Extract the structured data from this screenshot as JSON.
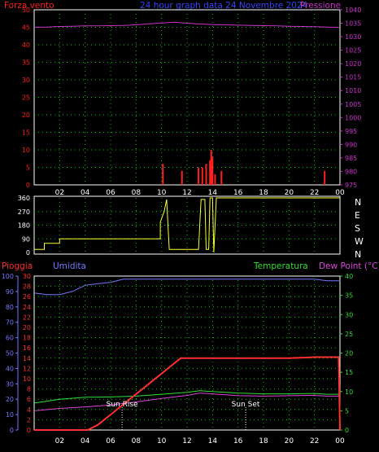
{
  "header": {
    "left_label": "Forza vento",
    "center_label": "24 hour graph data  24 Novembre 2024",
    "right_label": "Pressione"
  },
  "lower_header": {
    "pioggia": "Pioggia",
    "umidita": "Umidita",
    "temperatura": "Temperatura",
    "dewpoint": "Dew Point (°C)"
  },
  "colors": {
    "wind": "#ff2020",
    "pressure": "#cc33cc",
    "direction": "#ffff33",
    "rain": "#ff3030",
    "humidity": "#7777ff",
    "temperature": "#33dd33",
    "dewpoint": "#dd44dd",
    "grid": "#00cc00"
  },
  "x_ticks": [
    "02",
    "04",
    "06",
    "08",
    "10",
    "12",
    "14",
    "16",
    "18",
    "20",
    "22",
    "00"
  ],
  "chart_data": [
    {
      "type": "line",
      "title": "24 hour graph data  24 Novembre 2024",
      "left_axis": {
        "label": "Forza vento",
        "ticks": [
          0,
          5,
          10,
          15,
          20,
          25,
          30,
          35,
          40,
          45,
          50
        ],
        "ylim": [
          0,
          50
        ]
      },
      "right_axis": {
        "label": "Pressione",
        "ticks": [
          975,
          980,
          985,
          990,
          995,
          1000,
          1005,
          1010,
          1015,
          1020,
          1025,
          1030,
          1035,
          1040
        ],
        "ylim": [
          975,
          1040
        ]
      },
      "x": [
        0,
        1,
        2,
        3,
        4,
        5,
        6,
        7,
        8,
        9,
        10,
        11,
        12,
        13,
        14,
        15,
        16,
        17,
        18,
        19,
        20,
        21,
        22,
        23,
        24
      ],
      "series": [
        {
          "name": "Pressione",
          "axis": "right",
          "values": [
            1033.5,
            1033.6,
            1033.8,
            1033.9,
            1034.0,
            1034.0,
            1034.1,
            1034.2,
            1034.4,
            1034.8,
            1035.1,
            1035.4,
            1035.0,
            1034.7,
            1034.5,
            1034.4,
            1034.3,
            1034.2,
            1034.1,
            1034.0,
            1033.9,
            1033.8,
            1033.7,
            1033.6,
            1033.4
          ]
        },
        {
          "name": "Forza vento",
          "axis": "left",
          "type": "bar",
          "points": [
            [
              10.1,
              6
            ],
            [
              11.6,
              4
            ],
            [
              12.9,
              5
            ],
            [
              13.2,
              5
            ],
            [
              13.5,
              6
            ],
            [
              13.8,
              7
            ],
            [
              13.9,
              10
            ],
            [
              14.0,
              8
            ],
            [
              14.2,
              3
            ],
            [
              14.7,
              4
            ],
            [
              22.8,
              4
            ]
          ]
        }
      ]
    },
    {
      "type": "line",
      "title": "",
      "left_axis": {
        "ticks": [
          0,
          90,
          180,
          270,
          360
        ],
        "ylim": [
          0,
          360
        ]
      },
      "right_axis": {
        "ticks": [
          "N",
          "W",
          "S",
          "E",
          "N"
        ]
      },
      "series": [
        {
          "name": "",
          "points": [
            [
              0.0,
              20
            ],
            [
              0.8,
              20
            ],
            [
              0.8,
              60
            ],
            [
              2.0,
              60
            ],
            [
              2.0,
              90
            ],
            [
              9.9,
              90
            ],
            [
              9.9,
              200
            ],
            [
              10.2,
              270
            ],
            [
              10.4,
              350
            ],
            [
              10.6,
              20
            ],
            [
              12.9,
              20
            ],
            [
              13.1,
              350
            ],
            [
              13.4,
              350
            ],
            [
              13.5,
              20
            ],
            [
              13.7,
              20
            ],
            [
              13.8,
              360
            ],
            [
              14.0,
              360
            ],
            [
              14.1,
              0
            ],
            [
              14.3,
              360
            ],
            [
              24.0,
              360
            ]
          ]
        }
      ]
    },
    {
      "type": "line",
      "title": "",
      "left_axis_inner": {
        "label": "Pioggia",
        "ticks": [
          0,
          2,
          4,
          6,
          8,
          10,
          12,
          14,
          16,
          18,
          20,
          22,
          24,
          26,
          28,
          30
        ],
        "ylim": [
          0,
          30
        ]
      },
      "left_axis_outer": {
        "label": "Umidita",
        "ticks": [
          0,
          10,
          20,
          30,
          40,
          50,
          60,
          70,
          80,
          90,
          100
        ],
        "ylim": [
          0,
          100
        ]
      },
      "right_axis": {
        "label": "Temperatura",
        "ticks": [
          0,
          5,
          10,
          15,
          20,
          25,
          30,
          35,
          40
        ],
        "ylim": [
          0,
          40
        ]
      },
      "annotations": [
        {
          "text": "Sun Rise",
          "x": 6.9
        },
        {
          "text": "Sun Set",
          "x": 16.6
        }
      ],
      "series": [
        {
          "name": "Umidita",
          "axis": "outer",
          "points": [
            [
              0,
              89
            ],
            [
              1,
              88
            ],
            [
              2,
              88
            ],
            [
              3,
              90
            ],
            [
              4,
              94
            ],
            [
              5,
              95
            ],
            [
              6,
              96
            ],
            [
              7,
              98
            ],
            [
              8,
              98
            ],
            [
              9,
              98
            ],
            [
              10,
              98
            ],
            [
              11,
              98
            ],
            [
              12,
              98
            ],
            [
              14,
              98
            ],
            [
              16,
              98
            ],
            [
              18,
              98
            ],
            [
              20,
              98
            ],
            [
              22,
              98
            ],
            [
              23,
              97
            ],
            [
              24,
              97
            ]
          ]
        },
        {
          "name": "Pioggia",
          "axis": "inner",
          "points": [
            [
              0,
              0
            ],
            [
              4.2,
              0
            ],
            [
              5,
              1
            ],
            [
              6,
              3
            ],
            [
              7,
              5
            ],
            [
              8,
              7
            ],
            [
              9,
              9
            ],
            [
              10,
              11
            ],
            [
              11,
              13
            ],
            [
              11.5,
              14
            ],
            [
              15,
              14
            ],
            [
              18,
              14
            ],
            [
              20,
              14
            ],
            [
              22,
              14.2
            ],
            [
              23.9,
              14.2
            ],
            [
              24,
              0
            ]
          ]
        },
        {
          "name": "Temperatura",
          "axis": "right",
          "points": [
            [
              0,
              7
            ],
            [
              1,
              7.5
            ],
            [
              2,
              8
            ],
            [
              4,
              8.5
            ],
            [
              6,
              8.6
            ],
            [
              8,
              8.8
            ],
            [
              10,
              9.3
            ],
            [
              12,
              9.8
            ],
            [
              13,
              10.2
            ],
            [
              14,
              10.0
            ],
            [
              16,
              9.6
            ],
            [
              18,
              9.4
            ],
            [
              20,
              9.4
            ],
            [
              22,
              9.5
            ],
            [
              23,
              9.3
            ],
            [
              24,
              9.3
            ]
          ]
        },
        {
          "name": "Dew Point (°C)",
          "axis": "right",
          "points": [
            [
              0,
              5
            ],
            [
              1,
              5.3
            ],
            [
              2,
              5.6
            ],
            [
              4,
              6
            ],
            [
              6,
              6.5
            ],
            [
              8,
              7.3
            ],
            [
              10,
              8.2
            ],
            [
              12,
              9.0
            ],
            [
              13,
              9.6
            ],
            [
              14,
              9.4
            ],
            [
              16,
              8.9
            ],
            [
              18,
              8.8
            ],
            [
              20,
              8.9
            ],
            [
              22,
              9.0
            ],
            [
              23,
              8.8
            ],
            [
              24,
              8.8
            ]
          ]
        }
      ]
    }
  ]
}
